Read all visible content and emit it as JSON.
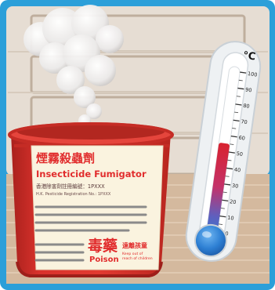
{
  "fumigator": {
    "label": {
      "title_chinese": "煙霧殺蟲劑",
      "title_english": "Insecticide Fumigator",
      "reg_chinese": "香港除害劑註冊編號：1PXXX",
      "reg_english": "H.K. Pesticide Registration No.: 1PXXX",
      "poison_chinese": "毒藥",
      "poison_english": "Poison",
      "keep_out_chinese": "遠離孩童",
      "keep_out_english_line1": "Keep out of",
      "keep_out_english_line2": "reach of children"
    }
  },
  "thermometer": {
    "unit": "°C",
    "ticks": [
      {
        "value": 100,
        "label": "100"
      },
      {
        "value": 90,
        "label": "90"
      },
      {
        "value": 80,
        "label": "80"
      },
      {
        "value": 70,
        "label": "70"
      },
      {
        "value": 60,
        "label": "60"
      },
      {
        "value": 50,
        "label": "50"
      },
      {
        "value": 40,
        "label": "40"
      },
      {
        "value": 30,
        "label": "30"
      },
      {
        "value": 20,
        "label": "20"
      },
      {
        "value": 10,
        "label": "10"
      },
      {
        "value": 0,
        "label": "0"
      }
    ],
    "reading_celsius": 55
  },
  "colors": {
    "frame_blue": "#2c9fd9",
    "wall": "#e6ddd3",
    "floor": "#d4b99e",
    "bucket_red": "#d9322c",
    "label_cream": "#faf3df",
    "liquid_red": "#d8222f",
    "liquid_blue": "#2d7fd3"
  }
}
